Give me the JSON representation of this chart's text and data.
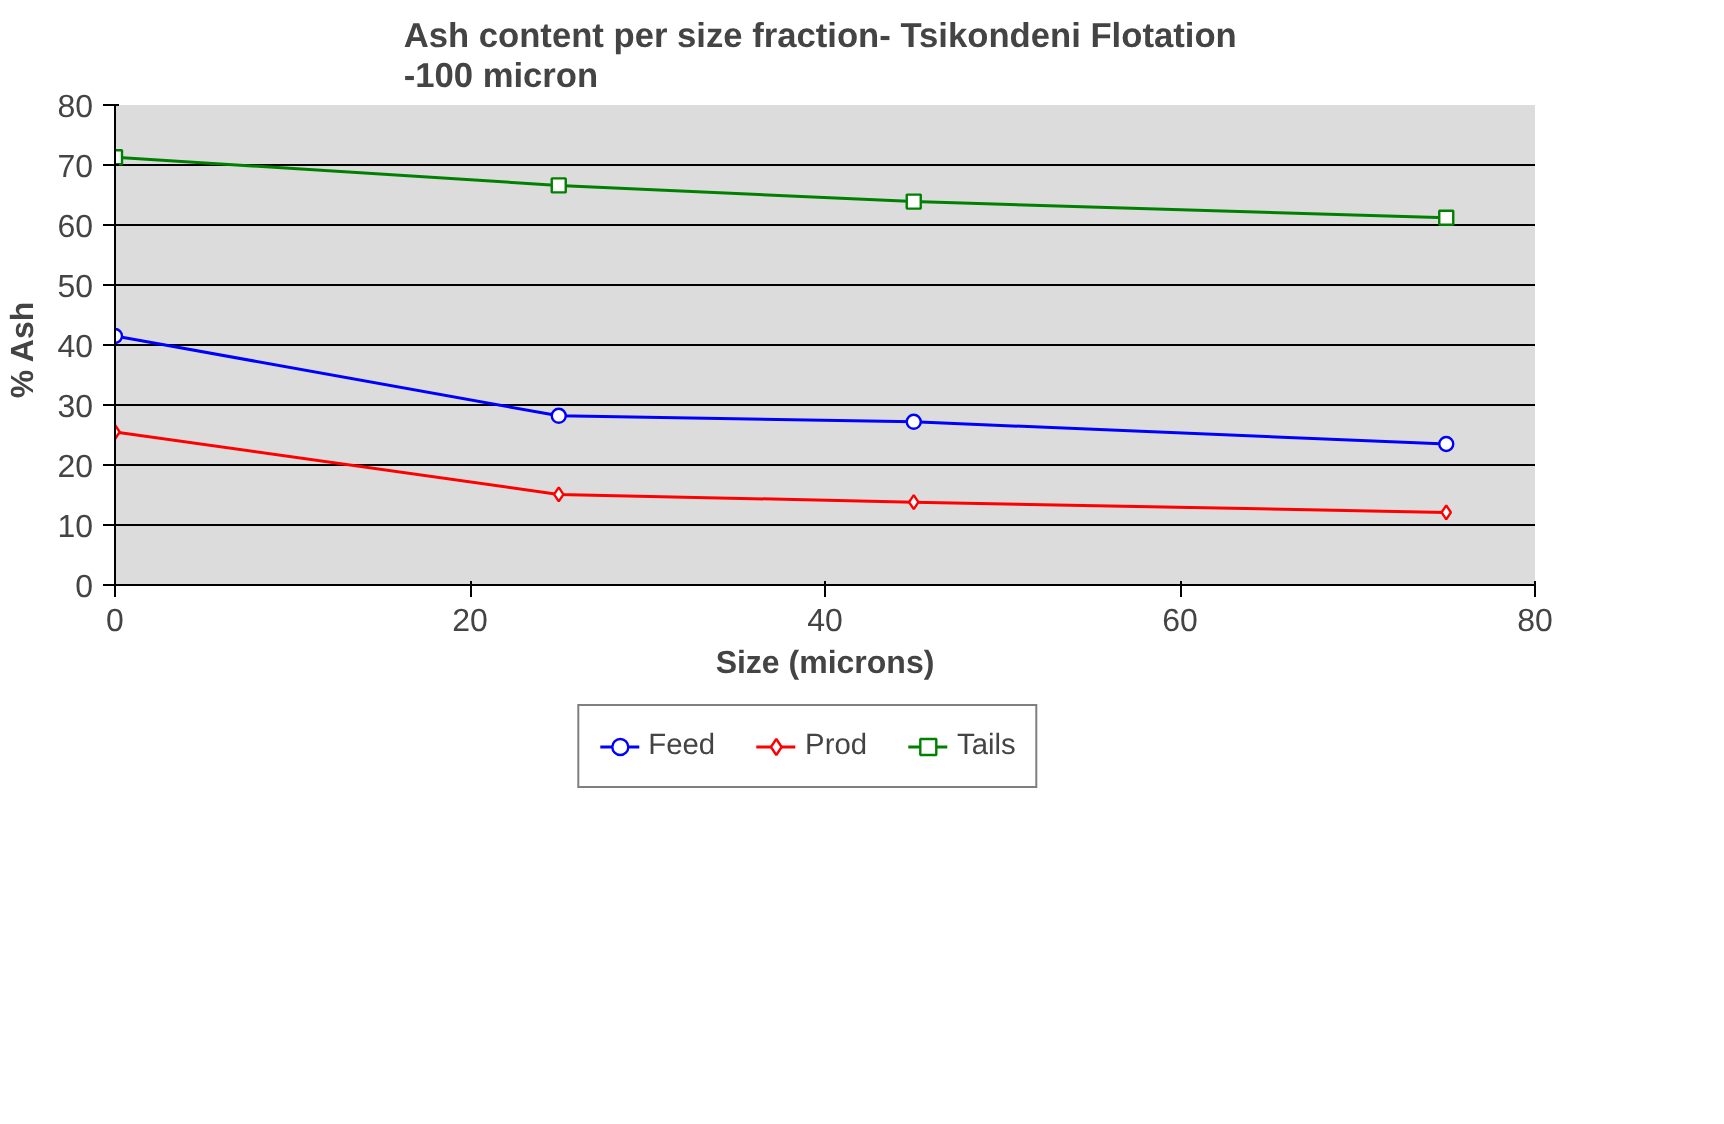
{
  "chart_data": {
    "type": "line",
    "title": "Ash content per size fraction-  Tsikondeni Flotation\n-100 micron",
    "xlabel": "Size (microns)",
    "ylabel": "%  Ash",
    "x": [
      0,
      25,
      45,
      75
    ],
    "series": [
      {
        "name": "Feed",
        "color": "#0000ff",
        "marker": "circle",
        "values": [
          41.5,
          28.2,
          27.2,
          23.5
        ]
      },
      {
        "name": "Prod",
        "color": "#ff0000",
        "marker": "diamond",
        "values": [
          25.5,
          15.1,
          13.8,
          12.1
        ]
      },
      {
        "name": "Tails",
        "color": "#008000",
        "marker": "square",
        "values": [
          71.3,
          66.6,
          63.9,
          61.2
        ]
      }
    ],
    "xlim": [
      0,
      80
    ],
    "xticks": [
      0,
      20,
      40,
      60,
      80
    ],
    "ylim": [
      0,
      80
    ],
    "yticks": [
      0,
      10,
      20,
      30,
      40,
      50,
      60,
      70,
      80
    ],
    "grid": "y",
    "legend": "bottom",
    "line_style": "solid"
  }
}
